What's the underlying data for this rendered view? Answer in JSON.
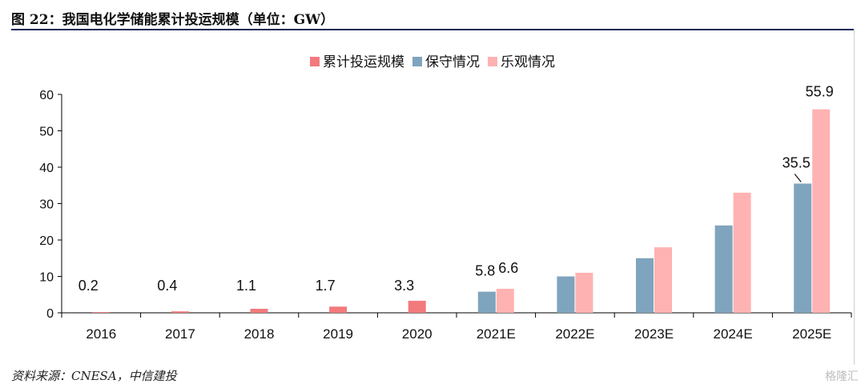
{
  "title": "图 22：我国电化学储能累计投运规模（单位：GW）",
  "source": "资料来源：CNESA，中信建投",
  "watermark": "格隆汇",
  "chart_data": {
    "type": "bar",
    "categories": [
      "2016",
      "2017",
      "2018",
      "2019",
      "2020",
      "2021E",
      "2022E",
      "2023E",
      "2024E",
      "2025E"
    ],
    "series": [
      {
        "name": "累计投运规模",
        "color": "#f27a7d",
        "values": [
          0.2,
          0.4,
          1.1,
          1.7,
          3.3,
          null,
          null,
          null,
          null,
          null
        ]
      },
      {
        "name": "保守情况",
        "color": "#7fa4bd",
        "values": [
          null,
          null,
          null,
          null,
          null,
          5.8,
          10,
          15,
          24,
          35.5
        ]
      },
      {
        "name": "乐观情况",
        "color": "#ffb2b2",
        "values": [
          null,
          null,
          null,
          null,
          null,
          6.6,
          11,
          18,
          33,
          55.9
        ]
      }
    ],
    "data_labels": [
      {
        "category": "2016",
        "series": 0,
        "text": "0.2"
      },
      {
        "category": "2017",
        "series": 0,
        "text": "0.4"
      },
      {
        "category": "2018",
        "series": 0,
        "text": "1.1"
      },
      {
        "category": "2019",
        "series": 0,
        "text": "1.7"
      },
      {
        "category": "2020",
        "series": 0,
        "text": "3.3"
      },
      {
        "category": "2021E",
        "series": 1,
        "text": "5.8"
      },
      {
        "category": "2021E",
        "series": 2,
        "text": "6.6"
      },
      {
        "category": "2025E",
        "series": 1,
        "text": "35.5"
      },
      {
        "category": "2025E",
        "series": 2,
        "text": "55.9"
      }
    ],
    "ylim": [
      0,
      60
    ],
    "yticks": [
      0,
      10,
      20,
      30,
      40,
      50,
      60
    ],
    "grid": false,
    "legend_position": "top-center"
  }
}
